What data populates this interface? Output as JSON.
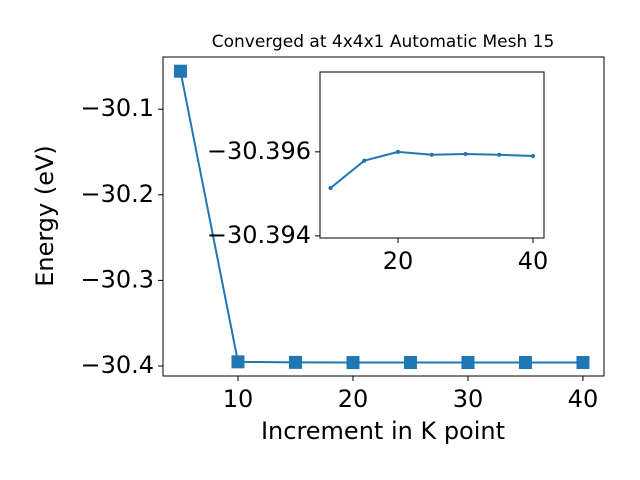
{
  "chart_data": [
    {
      "type": "line",
      "title": "Converged at 4x4x1 Automatic Mesh 15",
      "xlabel": "Increment in K point",
      "ylabel": "Energy (eV)",
      "x": [
        5,
        10,
        15,
        20,
        25,
        30,
        35,
        40
      ],
      "series": [
        {
          "color": "#1f77b4",
          "marker": "square",
          "values": [
            -30.0556,
            -30.39514,
            -30.39579,
            -30.396,
            -30.39593,
            -30.39595,
            -30.39593,
            -30.3959
          ]
        }
      ],
      "xlim": [
        3.48,
        41.83
      ],
      "ylim": [
        -30.4117,
        -30.039
      ],
      "xticks": [
        10,
        20,
        30,
        40
      ],
      "yticks": [
        {
          "value": -30.4,
          "label": "−30.4"
        },
        {
          "value": -30.3,
          "label": "−30.3"
        },
        {
          "value": -30.2,
          "label": "−30.2"
        },
        {
          "value": -30.1,
          "label": "−30.1"
        }
      ]
    },
    {
      "type": "line",
      "x": [
        10,
        15,
        20,
        25,
        30,
        35,
        40
      ],
      "series": [
        {
          "color": "#1f77b4",
          "marker": "circle",
          "values": [
            -30.39514,
            -30.39579,
            -30.396,
            -30.39593,
            -30.39595,
            -30.39593,
            -30.3959
          ]
        }
      ],
      "xlim": [
        8.44,
        41.63
      ],
      "ylim": [
        -30.39395,
        -30.3979
      ],
      "xticks": [
        20,
        40
      ],
      "yticks": [
        {
          "value": -30.394,
          "label": "−30.394"
        },
        {
          "value": -30.396,
          "label": "−30.396"
        }
      ]
    }
  ]
}
